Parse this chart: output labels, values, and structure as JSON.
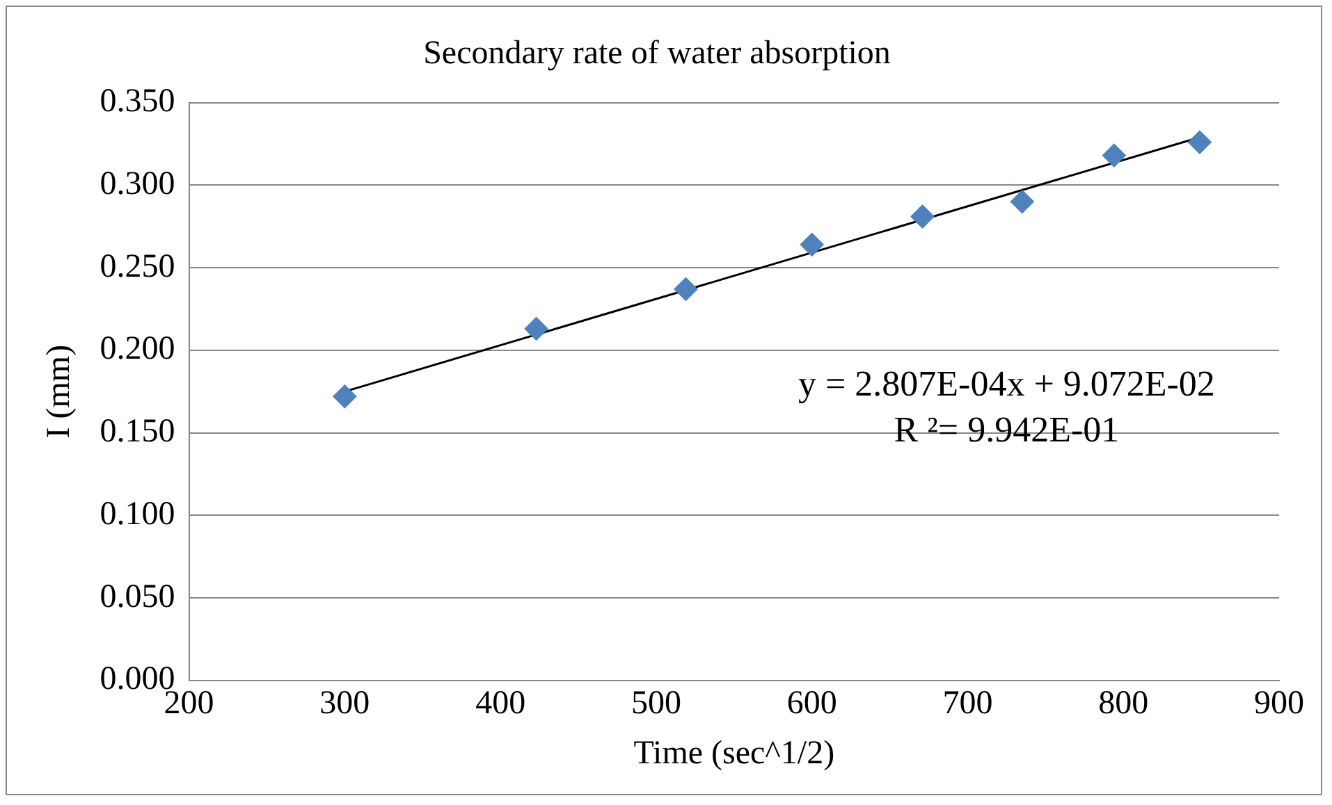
{
  "chart_data": {
    "type": "scatter",
    "title": "Secondary rate of water absorption",
    "xlabel": "Time (sec^1/2)",
    "ylabel": "I (mm)",
    "x": [
      300,
      423,
      519,
      600,
      671,
      735,
      794,
      849
    ],
    "series": [
      {
        "color": "#4f81bd",
        "marker": "diamond",
        "values": [
          0.172,
          0.213,
          0.237,
          0.264,
          0.281,
          0.29,
          0.318,
          0.326
        ]
      },
      {
        "type": "line",
        "color": "#000000",
        "marker": "none",
        "x": [
          300,
          849
        ],
        "values": [
          0.175,
          0.329
        ]
      }
    ],
    "annotations": [
      "y = 2.807E-04x + 9.072E-02",
      "R ²= 9.942E-01"
    ],
    "xlim": [
      200,
      900
    ],
    "xticks": [
      200,
      300,
      400,
      500,
      600,
      700,
      800,
      900
    ],
    "ylim": [
      0,
      0.35
    ],
    "yticks": [
      {
        "value": 0,
        "label": "0.000"
      },
      {
        "value": 0.05,
        "label": "0.050"
      },
      {
        "value": 0.1,
        "label": "0.100"
      },
      {
        "value": 0.15,
        "label": "0.150"
      },
      {
        "value": 0.2,
        "label": "0.200"
      },
      {
        "value": 0.25,
        "label": "0.250"
      },
      {
        "value": 0.3,
        "label": "0.300"
      },
      {
        "value": 0.35,
        "label": "0.350"
      }
    ],
    "grid": "y",
    "legend": false
  }
}
